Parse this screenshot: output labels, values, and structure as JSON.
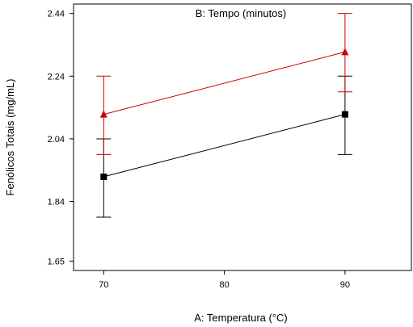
{
  "chart_data": {
    "type": "line",
    "legend_title": "B: Tempo (minutos)",
    "xlabel": "A: Temperatura (°C)",
    "ylabel": "Fenólicos Totais (mg/mL)",
    "xlim": [
      67.5,
      95.5
    ],
    "ylim": [
      1.62,
      2.47
    ],
    "x_ticks": [
      70,
      80,
      90
    ],
    "y_ticks": [
      1.65,
      1.84,
      2.04,
      2.24,
      2.44
    ],
    "x_tick_labels": [
      "70",
      "80",
      "90"
    ],
    "y_tick_labels": [
      "1.65",
      "1.84",
      "2.04",
      "2.24",
      "2.44"
    ],
    "grid": false,
    "series": [
      {
        "color": "#000000",
        "marker": "square",
        "x": [
          70,
          90
        ],
        "y": [
          1.919,
          2.118
        ],
        "err_low": [
          1.79,
          1.99
        ],
        "err_high": [
          2.04,
          2.24
        ]
      },
      {
        "color": "#cc0000",
        "marker": "triangle",
        "x": [
          70,
          90
        ],
        "y": [
          2.118,
          2.317
        ],
        "err_low": [
          1.99,
          2.19
        ],
        "err_high": [
          2.24,
          2.44
        ]
      }
    ]
  }
}
